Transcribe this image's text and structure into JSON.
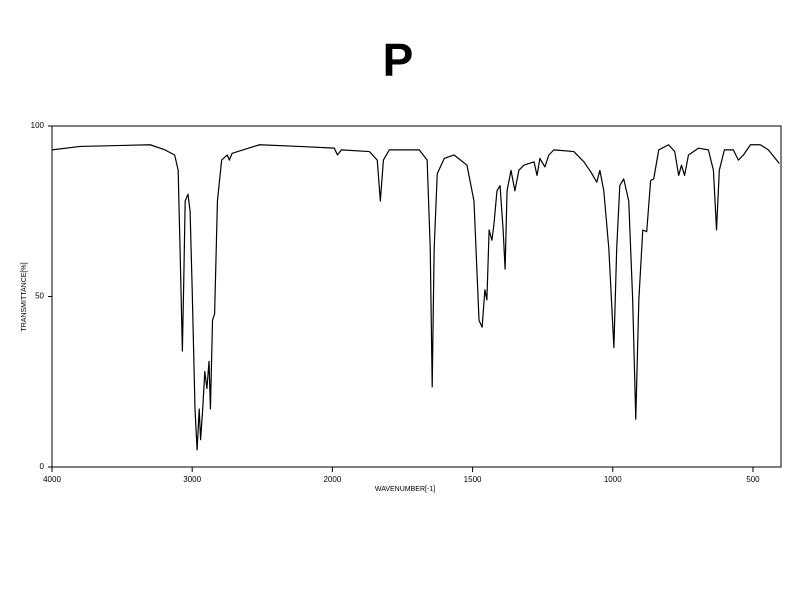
{
  "chart_data": {
    "type": "line",
    "title": "P",
    "x_label": "WAVENUMBER[-1]",
    "y_label": "TRANSMITTANCE[%]",
    "xlim": [
      4000,
      400
    ],
    "ylim": [
      0,
      100
    ],
    "xticks": [
      4000,
      3000,
      2000,
      1500,
      1000,
      500
    ],
    "yticks": [
      0,
      50,
      100
    ],
    "grid": false,
    "series": [
      {
        "color": "#000000",
        "x": [
          4000,
          3800,
          3300,
          3195,
          3125,
          3100,
          3085,
          3070,
          3060,
          3050,
          3030,
          3015,
          3000,
          2980,
          2965,
          2950,
          2940,
          2925,
          2910,
          2895,
          2880,
          2870,
          2855,
          2840,
          2820,
          2790,
          2750,
          2735,
          2715,
          2520,
          2235,
          1993,
          1982,
          1968,
          1868,
          1840,
          1829,
          1818,
          1797,
          1690,
          1662,
          1651,
          1644,
          1637,
          1626,
          1601,
          1566,
          1520,
          1495,
          1477,
          1466,
          1456,
          1449,
          1441,
          1431,
          1424,
          1413,
          1402,
          1391,
          1384,
          1377,
          1363,
          1349,
          1335,
          1317,
          1281,
          1270,
          1260,
          1242,
          1228,
          1210,
          1139,
          1103,
          1078,
          1057,
          1046,
          1032,
          1014,
          996,
          986,
          975,
          961,
          943,
          929,
          918,
          907,
          893,
          879,
          865,
          854,
          836,
          801,
          779,
          765,
          755,
          744,
          730,
          694,
          659,
          641,
          630,
          620,
          602,
          570,
          552,
          534,
          509,
          474,
          445,
          406
        ],
        "values": [
          93,
          94,
          94.5,
          93,
          91.5,
          87,
          61,
          34,
          55,
          78,
          80,
          75,
          52,
          17,
          5,
          17,
          8,
          17,
          28,
          23,
          31,
          17,
          43,
          45,
          78,
          90,
          91.5,
          90,
          92,
          94.5,
          94,
          93.5,
          91.5,
          93,
          92.5,
          90,
          78,
          90,
          93,
          93,
          90,
          64,
          23.5,
          64,
          86,
          90.5,
          91.5,
          88.5,
          78,
          43,
          41,
          52,
          49,
          69.5,
          66.5,
          71,
          81,
          82.5,
          69.5,
          58,
          81,
          87,
          81,
          87,
          88.5,
          89.5,
          85.5,
          90.5,
          88,
          91.5,
          93,
          92.5,
          89.5,
          86.5,
          83.5,
          87,
          81,
          64,
          35,
          64,
          82.5,
          84.5,
          78,
          49,
          14,
          49,
          69.5,
          69,
          84,
          84.5,
          93,
          94.5,
          92.5,
          85.5,
          88.5,
          85.5,
          91.5,
          93.5,
          93,
          87,
          69.5,
          87,
          93,
          93,
          90,
          91.5,
          94.5,
          94.5,
          93,
          89
        ]
      }
    ]
  }
}
